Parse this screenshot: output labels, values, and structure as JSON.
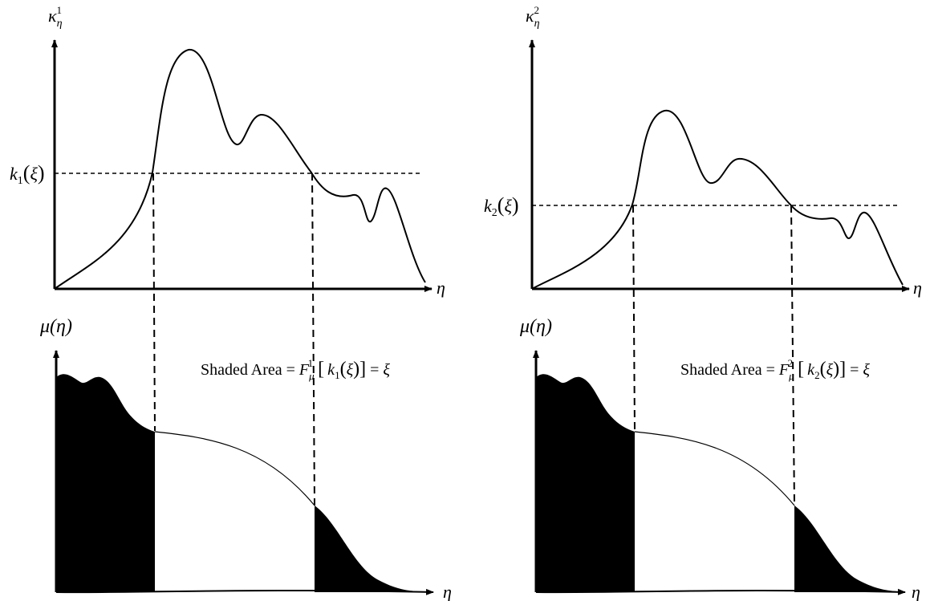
{
  "colors": {
    "ink": "#000000",
    "paper": "#ffffff"
  },
  "panels": [
    {
      "id": "left",
      "top_axis": {
        "y_symbol": "κ",
        "y_sub": "η",
        "y_sup": "1",
        "x_label": "η"
      },
      "threshold": {
        "k_symbol": "k",
        "k_sub": "1",
        "xi": "ξ"
      },
      "bottom_axis": {
        "y_label": "μ(η)",
        "x_label": "η"
      },
      "annotation": {
        "prefix": "Shaded Area = ",
        "F": "F",
        "F_sub": "μ",
        "F_sup": "1",
        "k_sub": "1",
        "xi": "ξ"
      }
    },
    {
      "id": "right",
      "top_axis": {
        "y_symbol": "κ",
        "y_sub": "η",
        "y_sup": "2",
        "x_label": "η"
      },
      "threshold": {
        "k_symbol": "k",
        "k_sub": "2",
        "xi": "ξ"
      },
      "bottom_axis": {
        "y_label": "μ(η)",
        "x_label": "η"
      },
      "annotation": {
        "prefix": "Shaded Area = ",
        "F": "F",
        "F_sub": "μ",
        "F_sup": "2",
        "k_sub": "2",
        "xi": "ξ"
      }
    }
  ]
}
